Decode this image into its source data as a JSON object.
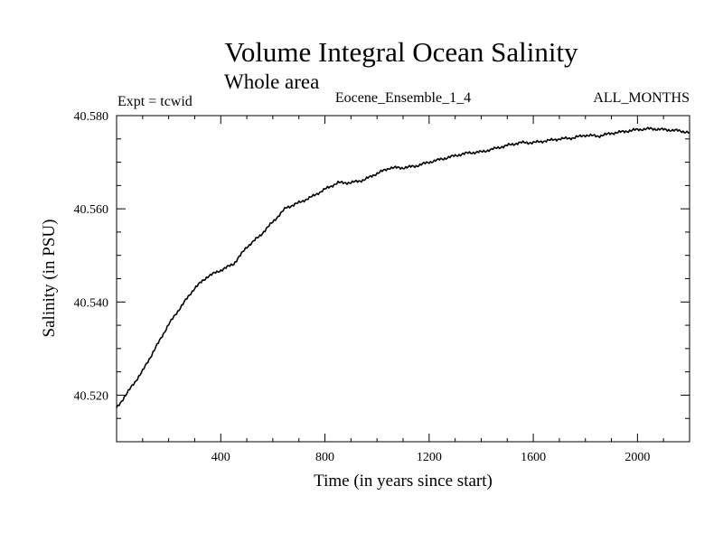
{
  "chart_data": {
    "type": "line",
    "title": "Volume Integral Ocean Salinity",
    "subtitle": "Whole area",
    "experiment_label": "Expt = tcwid",
    "ensemble_label": "Eocene_Ensemble_1_4",
    "months_label": "ALL_MONTHS",
    "xlabel": "Time (in years since start)",
    "ylabel": "Salinity (in PSU)",
    "xlim": [
      0,
      2200
    ],
    "ylim": [
      40.51,
      40.58
    ],
    "x_ticks": [
      400,
      800,
      1200,
      1600,
      2000
    ],
    "x_tick_labels": [
      "400",
      "800",
      "1200",
      "1600",
      "2000"
    ],
    "y_ticks": [
      40.52,
      40.54,
      40.56,
      40.58
    ],
    "y_tick_labels": [
      "40.520",
      "40.540",
      "40.560",
      "40.580"
    ],
    "grid": false,
    "series": [
      {
        "color": "#000000",
        "x": [
          0,
          50,
          100,
          150,
          200,
          250,
          300,
          350,
          400,
          450,
          500,
          550,
          600,
          650,
          700,
          750,
          800,
          850,
          900,
          950,
          1000,
          1050,
          1100,
          1150,
          1200,
          1250,
          1300,
          1350,
          1400,
          1450,
          1500,
          1550,
          1600,
          1650,
          1700,
          1750,
          1800,
          1850,
          1900,
          1950,
          2000,
          2050,
          2100,
          2150,
          2200
        ],
        "y": [
          40.5172,
          40.5212,
          40.5252,
          40.5302,
          40.5352,
          40.5392,
          40.543,
          40.5455,
          40.5468,
          40.5482,
          40.5518,
          40.5542,
          40.5572,
          40.5602,
          40.5613,
          40.5626,
          40.5642,
          40.5656,
          40.5656,
          40.5662,
          40.5676,
          40.5688,
          40.5688,
          40.5692,
          40.57,
          40.5707,
          40.5714,
          40.572,
          40.5722,
          40.5729,
          40.5736,
          40.5742,
          40.5742,
          40.5746,
          40.575,
          40.5752,
          40.5758,
          40.5756,
          40.5762,
          40.5766,
          40.577,
          40.5772,
          40.577,
          40.5768,
          40.5764
        ]
      }
    ]
  }
}
